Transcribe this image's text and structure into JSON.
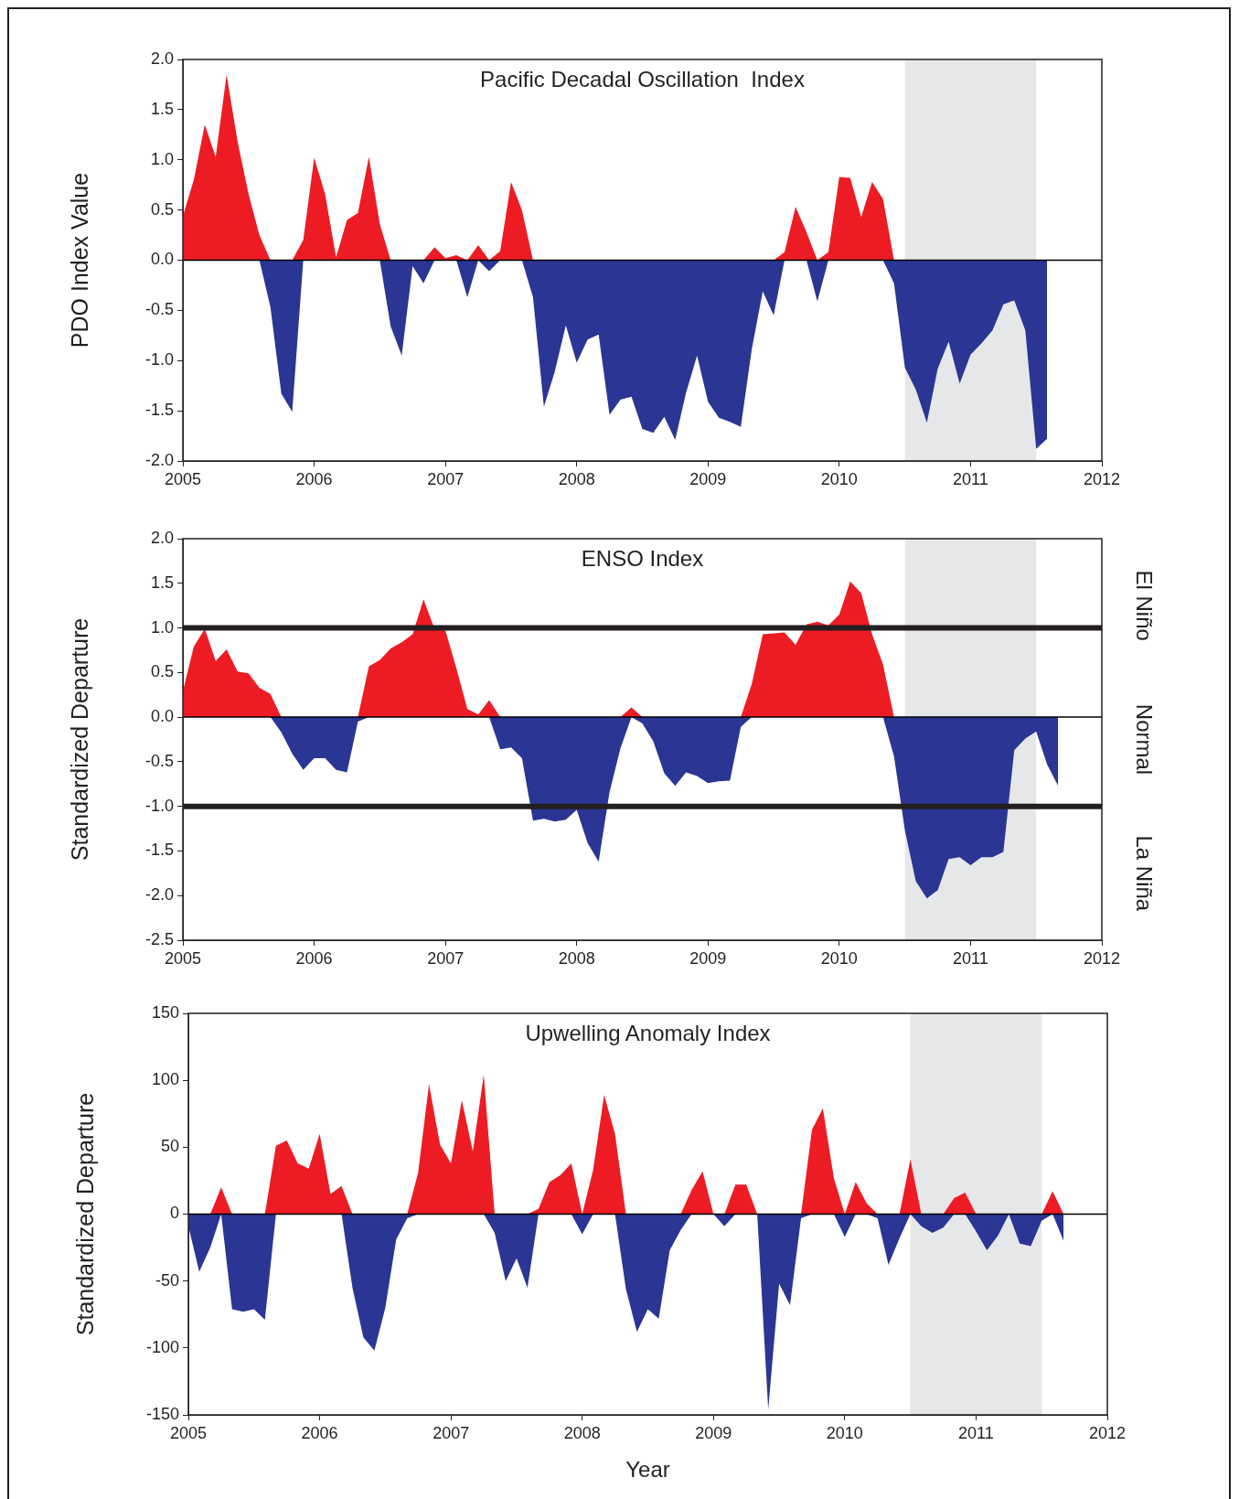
{
  "chart_data": [
    {
      "type": "area",
      "title": "Pacific Decadal Oscillation  Index",
      "ylabel": "PDO Index Value",
      "x": [
        2005,
        2005.083,
        2005.167,
        2005.25,
        2005.333,
        2005.417,
        2005.5,
        2005.583,
        2005.667,
        2005.75,
        2005.833,
        2005.917,
        2006,
        2006.083,
        2006.167,
        2006.25,
        2006.333,
        2006.417,
        2006.5,
        2006.583,
        2006.667,
        2006.75,
        2006.833,
        2006.917,
        2007,
        2007.083,
        2007.167,
        2007.25,
        2007.333,
        2007.417,
        2007.5,
        2007.583,
        2007.667,
        2007.75,
        2007.833,
        2007.917,
        2008,
        2008.083,
        2008.167,
        2008.25,
        2008.333,
        2008.417,
        2008.5,
        2008.583,
        2008.667,
        2008.75,
        2008.833,
        2008.917,
        2009,
        2009.083,
        2009.167,
        2009.25,
        2009.333,
        2009.417,
        2009.5,
        2009.583,
        2009.667,
        2009.75,
        2009.833,
        2009.917,
        2010,
        2010.083,
        2010.167,
        2010.25,
        2010.333,
        2010.417,
        2010.5,
        2010.583,
        2010.667,
        2010.75,
        2010.833,
        2010.917,
        2011,
        2011.083,
        2011.167,
        2011.25,
        2011.333,
        2011.417,
        2011.5,
        2011.583
      ],
      "xlim": [
        2005,
        2012
      ],
      "xticks": [
        2005,
        2006,
        2007,
        2008,
        2009,
        2010,
        2011,
        2012
      ],
      "ylim": [
        -2,
        2
      ],
      "yticks": [
        {
          "value": -2,
          "label": "-2.0"
        },
        -1.5,
        {
          "value": -1,
          "label": "-1.0"
        },
        -0.5,
        {
          "value": 0,
          "label": "0.0"
        },
        0.5,
        {
          "value": 1,
          "label": "1.0"
        },
        1.5,
        {
          "value": 2,
          "label": "2.0"
        }
      ],
      "bands": [
        {
          "axis": "x",
          "from": 2010.5,
          "to": 2011.5,
          "color": "#e6e7e8"
        }
      ],
      "series": [
        {
          "color": "#ed1c24",
          "values": [
            0.44,
            0.8,
            1.35,
            1.03,
            1.85,
            1.18,
            0.66,
            0.25,
            0,
            0,
            0,
            0.2,
            1.02,
            0.66,
            0.03,
            0.4,
            0.47,
            1.03,
            0.36,
            0,
            0,
            0,
            0,
            0.13,
            0.02,
            0.05,
            0,
            0.15,
            0,
            0.09,
            0.78,
            0.5,
            0,
            0,
            0,
            0,
            0,
            0,
            0,
            0,
            0,
            0,
            0,
            0,
            0,
            0,
            0,
            0,
            0,
            0,
            0,
            0,
            0,
            0,
            0,
            0.08,
            0.53,
            0.28,
            0,
            0.08,
            0.83,
            0.82,
            0.43,
            0.78,
            0.61,
            0,
            0,
            0,
            0,
            0,
            0,
            0,
            0,
            0,
            0,
            0,
            0,
            0,
            0,
            0
          ]
        },
        {
          "color": "#2b3594",
          "values": [
            0,
            0,
            0,
            0,
            0,
            0,
            0,
            0,
            -0.47,
            -1.33,
            -1.51,
            0,
            0,
            0,
            0,
            0,
            0,
            0,
            0,
            -0.66,
            -0.95,
            -0.06,
            -0.23,
            0,
            0,
            0,
            -0.37,
            0,
            -0.11,
            0,
            0,
            0,
            -0.37,
            -1.46,
            -1.11,
            -0.65,
            -1.02,
            -0.79,
            -0.74,
            -1.54,
            -1.39,
            -1.36,
            -1.68,
            -1.72,
            -1.56,
            -1.79,
            -1.32,
            -0.95,
            -1.41,
            -1.57,
            -1.61,
            -1.66,
            -0.89,
            -0.31,
            -0.55,
            0,
            0,
            0,
            -0.41,
            0,
            0,
            0,
            0,
            0,
            0,
            -0.23,
            -1.07,
            -1.29,
            -1.62,
            -1.08,
            -0.81,
            -1.23,
            -0.94,
            -0.83,
            -0.7,
            -0.44,
            -0.4,
            -0.7,
            -1.88,
            -1.78
          ]
        }
      ]
    },
    {
      "type": "area",
      "title": "ENSO Index",
      "ylabel": "Standardized Departure",
      "x": [
        2005,
        2005.083,
        2005.167,
        2005.25,
        2005.333,
        2005.417,
        2005.5,
        2005.583,
        2005.667,
        2005.75,
        2005.833,
        2005.917,
        2006,
        2006.083,
        2006.167,
        2006.25,
        2006.333,
        2006.417,
        2006.5,
        2006.583,
        2006.667,
        2006.75,
        2006.833,
        2006.917,
        2007,
        2007.083,
        2007.167,
        2007.25,
        2007.333,
        2007.417,
        2007.5,
        2007.583,
        2007.667,
        2007.75,
        2007.833,
        2007.917,
        2008,
        2008.083,
        2008.167,
        2008.25,
        2008.333,
        2008.417,
        2008.5,
        2008.583,
        2008.667,
        2008.75,
        2008.833,
        2008.917,
        2009,
        2009.083,
        2009.167,
        2009.25,
        2009.333,
        2009.417,
        2009.5,
        2009.583,
        2009.667,
        2009.75,
        2009.833,
        2009.917,
        2010,
        2010.083,
        2010.167,
        2010.25,
        2010.333,
        2010.417,
        2010.5,
        2010.583,
        2010.667,
        2010.75,
        2010.833,
        2010.917,
        2011,
        2011.083,
        2011.167,
        2011.25,
        2011.333,
        2011.417,
        2011.5,
        2011.583,
        2011.667
      ],
      "xlim": [
        2005,
        2012
      ],
      "xticks": [
        2005,
        2006,
        2007,
        2008,
        2009,
        2010,
        2011,
        2012
      ],
      "ylim": [
        -2.5,
        2
      ],
      "yticks": [
        -2.5,
        {
          "value": -2,
          "label": "-2.0"
        },
        -1.5,
        {
          "value": -1,
          "label": "-1.0"
        },
        -0.5,
        {
          "value": 0,
          "label": "0.0"
        },
        0.5,
        {
          "value": 1,
          "label": "1.0"
        },
        1.5,
        {
          "value": 2,
          "label": "2.0"
        }
      ],
      "bands": [
        {
          "axis": "x",
          "from": 2010.5,
          "to": 2011.5,
          "color": "#e6e7e8"
        }
      ],
      "ref_lines": [
        {
          "axis": "y",
          "value": 1,
          "color": "#231f20"
        },
        {
          "axis": "y",
          "value": -1,
          "color": "#231f20"
        }
      ],
      "annotations": [
        "El Niño",
        "Normal",
        "La Niña"
      ],
      "series": [
        {
          "color": "#ed1c24",
          "values": [
            0.29,
            0.79,
            0.99,
            0.63,
            0.76,
            0.51,
            0.49,
            0.33,
            0.26,
            0,
            0,
            0,
            0,
            0,
            0,
            0,
            0,
            0.57,
            0.64,
            0.77,
            0.84,
            0.93,
            1.32,
            0.99,
            0.97,
            0.55,
            0.09,
            0.03,
            0.19,
            0,
            0,
            0,
            0,
            0,
            0,
            0,
            0,
            0,
            0,
            0,
            0,
            0.11,
            0,
            0,
            0,
            0,
            0,
            0,
            0,
            0,
            0,
            0,
            0.37,
            0.93,
            0.94,
            0.95,
            0.81,
            1.04,
            1.07,
            1.03,
            1.15,
            1.52,
            1.39,
            0.93,
            0.59,
            0,
            0,
            0,
            0,
            0,
            0,
            0,
            0,
            0,
            0,
            0,
            0,
            0,
            0,
            0,
            0
          ]
        },
        {
          "color": "#2b3594",
          "values": [
            0,
            0,
            0,
            0,
            0,
            0,
            0,
            0,
            0,
            -0.17,
            -0.41,
            -0.59,
            -0.46,
            -0.46,
            -0.59,
            -0.62,
            -0.05,
            0,
            0,
            0,
            0,
            0,
            0,
            0,
            0,
            0,
            0,
            0,
            0,
            -0.36,
            -0.34,
            -0.46,
            -1.16,
            -1.14,
            -1.17,
            -1.15,
            -1.04,
            -1.41,
            -1.62,
            -0.84,
            -0.35,
            0,
            -0.07,
            -0.27,
            -0.63,
            -0.77,
            -0.62,
            -0.66,
            -0.74,
            -0.72,
            -0.71,
            -0.11,
            0,
            0,
            0,
            0,
            0,
            0,
            0,
            0,
            0,
            0,
            0,
            0,
            0,
            -0.44,
            -1.27,
            -1.84,
            -2.03,
            -1.94,
            -1.59,
            -1.57,
            -1.66,
            -1.57,
            -1.57,
            -1.51,
            -0.37,
            -0.24,
            -0.16,
            -0.53,
            -0.77
          ]
        }
      ]
    },
    {
      "type": "area",
      "title": "Upwelling Anomaly Index",
      "ylabel": "Standardized Departure",
      "xlabel": "Year",
      "x": [
        2005,
        2005.083,
        2005.167,
        2005.25,
        2005.333,
        2005.417,
        2005.5,
        2005.583,
        2005.667,
        2005.75,
        2005.833,
        2005.917,
        2006,
        2006.083,
        2006.167,
        2006.25,
        2006.333,
        2006.417,
        2006.5,
        2006.583,
        2006.667,
        2006.75,
        2006.833,
        2006.917,
        2007,
        2007.083,
        2007.167,
        2007.25,
        2007.333,
        2007.417,
        2007.5,
        2007.583,
        2007.667,
        2007.75,
        2007.833,
        2007.917,
        2008,
        2008.083,
        2008.167,
        2008.25,
        2008.333,
        2008.417,
        2008.5,
        2008.583,
        2008.667,
        2008.75,
        2008.833,
        2008.917,
        2009,
        2009.083,
        2009.167,
        2009.25,
        2009.333,
        2009.417,
        2009.5,
        2009.583,
        2009.667,
        2009.75,
        2009.833,
        2009.917,
        2010,
        2010.083,
        2010.167,
        2010.25,
        2010.333,
        2010.417,
        2010.5,
        2010.583,
        2010.667,
        2010.75,
        2010.833,
        2010.917,
        2011,
        2011.083,
        2011.167,
        2011.25,
        2011.333,
        2011.417,
        2011.5,
        2011.583,
        2011.667
      ],
      "xlim": [
        2005,
        2012
      ],
      "xticks": [
        2005,
        2006,
        2007,
        2008,
        2009,
        2010,
        2011,
        2012
      ],
      "ylim": [
        -150,
        150
      ],
      "yticks": [
        -150,
        -100,
        -50,
        0,
        50,
        100,
        150
      ],
      "bands": [
        {
          "axis": "x",
          "from": 2010.5,
          "to": 2011.5,
          "color": "#e6e7e8"
        }
      ],
      "series": [
        {
          "color": "#ed1c24",
          "values": [
            0,
            0,
            0,
            20,
            0,
            0,
            0,
            0,
            51,
            55,
            38,
            34,
            60,
            15,
            21,
            0,
            0,
            0,
            0,
            0,
            0,
            31,
            97,
            52,
            38,
            85,
            47,
            104,
            0,
            0,
            0,
            0,
            4,
            24,
            29,
            38,
            0,
            33,
            89,
            60,
            0,
            0,
            0,
            0,
            0,
            0,
            18,
            32,
            0,
            0,
            22,
            22,
            0,
            0,
            0,
            0,
            0,
            63,
            79,
            27,
            0,
            24,
            8,
            0,
            0,
            0,
            41,
            0,
            0,
            0,
            12,
            16,
            0,
            0,
            0,
            0,
            0,
            0,
            0,
            17,
            0
          ]
        },
        {
          "color": "#2b3594",
          "values": [
            -9,
            -43,
            -25,
            0,
            -71,
            -73,
            -71,
            -79,
            0,
            0,
            0,
            0,
            0,
            0,
            0,
            -55,
            -92,
            -102,
            -70,
            -19,
            -3,
            0,
            0,
            0,
            0,
            0,
            0,
            0,
            -14,
            -50,
            -33,
            -55,
            0,
            0,
            0,
            0,
            -15,
            0,
            0,
            0,
            -56,
            -88,
            -71,
            -78,
            -27,
            -12,
            0,
            0,
            0,
            -9,
            0,
            0,
            0,
            -146,
            -52,
            -68,
            -3,
            0,
            0,
            0,
            -17,
            0,
            0,
            -3,
            -38,
            -18,
            0,
            -9,
            -14,
            -10,
            0,
            0,
            -13,
            -27,
            -16,
            0,
            -22,
            -24,
            -5,
            0,
            -20
          ]
        }
      ]
    }
  ]
}
